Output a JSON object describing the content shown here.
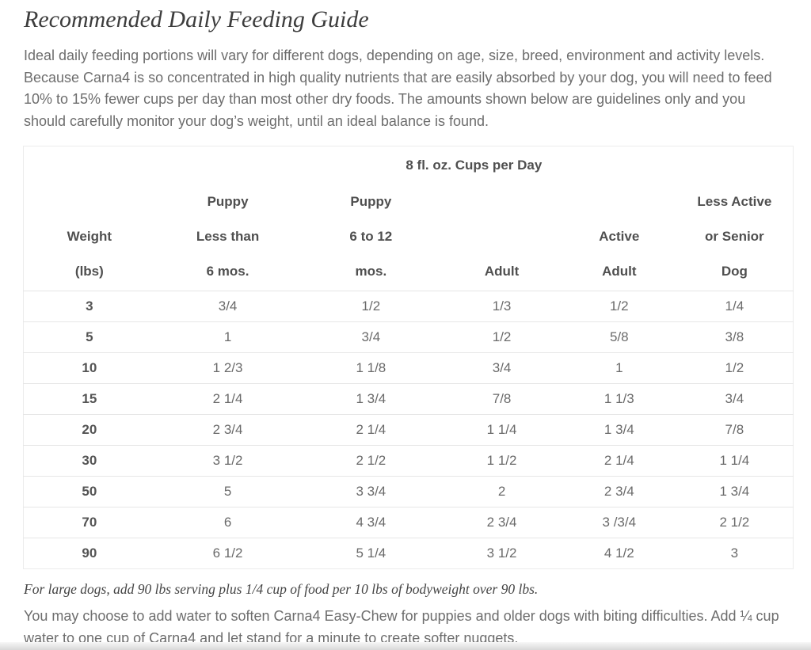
{
  "page": {
    "title": "Recommended Daily Feeding Guide",
    "intro": "Ideal daily feeding portions will vary for different dogs, depending on age, size, breed, environment and activity levels. Because Carna4 is so concentrated in high quality nutrients that are easily absorbed by your dog, you will need to feed 10% to 15% fewer cups per day than most other dry foods. The amounts shown below are guidelines only and you should carefully monitor your dog’s weight, until an ideal balance is found.",
    "footnote": "For large dogs, add 90 lbs serving plus 1/4 cup of food per 10 lbs of bodyweight over 90 lbs.",
    "outro": "You may choose to add water to soften Carna4 Easy-Chew for puppies and older dogs with biting difficulties. Add ¼ cup water to one cup of Carna4 and let stand for a minute to create softer nuggets."
  },
  "table": {
    "caption": "8 fl. oz. Cups per Day",
    "columns": [
      {
        "id": "weight-lbs",
        "lines": [
          "Weight",
          "(lbs)"
        ]
      },
      {
        "id": "puppy-under-6mos",
        "lines": [
          "Puppy",
          "Less than",
          "6 mos."
        ]
      },
      {
        "id": "puppy-6-to-12mos",
        "lines": [
          "Puppy",
          "6 to 12",
          "mos."
        ]
      },
      {
        "id": "adult",
        "lines": [
          "Adult"
        ]
      },
      {
        "id": "active-adult",
        "lines": [
          "Active",
          "Adult"
        ]
      },
      {
        "id": "less-active-senior",
        "lines": [
          "Less Active",
          "or Senior",
          "Dog"
        ]
      }
    ],
    "rows": [
      [
        "3",
        "3/4",
        "1/2",
        "1/3",
        "1/2",
        "1/4"
      ],
      [
        "5",
        "1",
        "3/4",
        "1/2",
        "5/8",
        "3/8"
      ],
      [
        "10",
        "1 2/3",
        "1 1/8",
        "3/4",
        "1",
        "1/2"
      ],
      [
        "15",
        "2 1/4",
        "1 3/4",
        "7/8",
        "1 1/3",
        "3/4"
      ],
      [
        "20",
        "2 3/4",
        "2 1/4",
        "1 1/4",
        "1 3/4",
        "7/8"
      ],
      [
        "30",
        "3 1/2",
        "2 1/2",
        "1 1/2",
        "2 1/4",
        "1 1/4"
      ],
      [
        "50",
        "5",
        "3 3/4",
        "2",
        "2 3/4",
        "1 3/4"
      ],
      [
        "70",
        "6",
        "4 3/4",
        "2 3/4",
        "3 /3/4",
        "2 1/2"
      ],
      [
        "90",
        "6 1/2",
        "5 1/4",
        "3 1/2",
        "4 1/2",
        "3"
      ]
    ]
  },
  "colors": {
    "title_text": "#3d3d3d",
    "body_text": "#6d6d6d",
    "table_header_text": "#4f4f4f",
    "table_value_text": "#6a6a6a",
    "table_border": "#ececec",
    "row_separator": "#e6e6e6",
    "page_background": "#ffffff"
  }
}
